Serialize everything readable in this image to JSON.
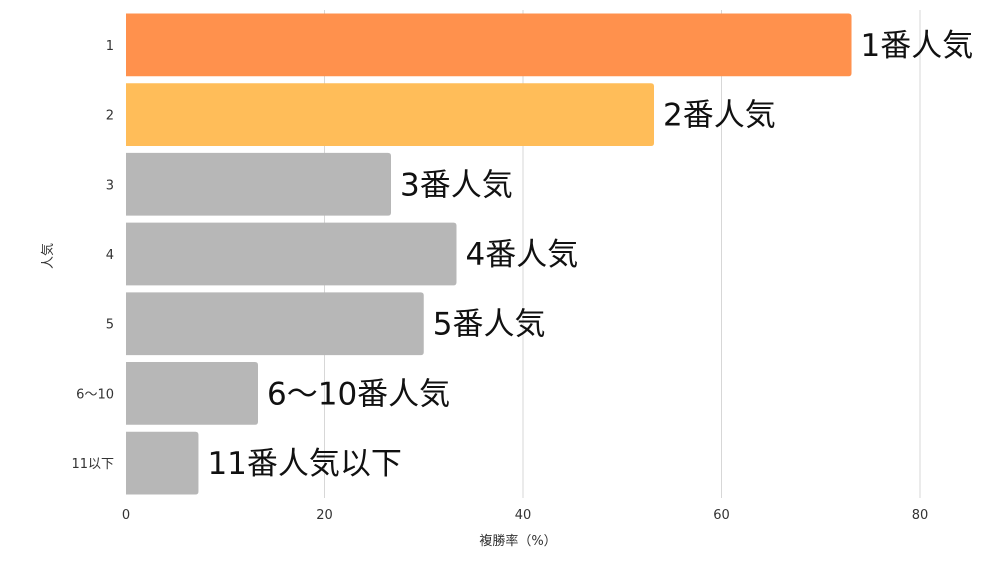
{
  "chart_data": {
    "type": "bar",
    "orientation": "horizontal",
    "categories": [
      "1",
      "2",
      "3",
      "4",
      "5",
      "6〜10",
      "11以下"
    ],
    "values": [
      73.1,
      53.2,
      26.7,
      33.3,
      30.0,
      13.3,
      7.3
    ],
    "data_labels": [
      "1番人気",
      "2番人気",
      "3番人気",
      "4番人気",
      "5番人気",
      "6〜10番人気",
      "11番人気以下"
    ],
    "colors": [
      "#ff914d",
      "#ffbd59",
      "#b7b7b7",
      "#b7b7b7",
      "#b7b7b7",
      "#b7b7b7",
      "#b7b7b7"
    ],
    "xlabel": "複勝率（%）",
    "ylabel": "人気",
    "xlim": [
      0,
      80
    ],
    "xticks": [
      0,
      20,
      40,
      60,
      80
    ],
    "grid": "vertical",
    "legend": "none"
  }
}
